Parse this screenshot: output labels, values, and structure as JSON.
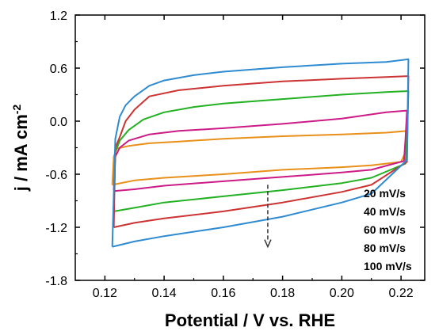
{
  "chart_data": {
    "type": "line",
    "xlabel": "Potential / V vs. RHE",
    "ylabel": "j / mA cm",
    "ylabel_superscript": "-2",
    "xlim": [
      0.11,
      0.228
    ],
    "ylim": [
      -1.8,
      1.2
    ],
    "x_ticks": [
      0.12,
      0.14,
      0.16,
      0.18,
      0.2,
      0.22
    ],
    "y_ticks": [
      -1.8,
      -1.2,
      -0.6,
      0.0,
      0.6,
      1.2
    ],
    "x_tick_labels": [
      "0.12",
      "0.14",
      "0.16",
      "0.18",
      "0.20",
      "0.22"
    ],
    "y_tick_labels": [
      "-1.8",
      "-1.2",
      "-0.6",
      "0.0",
      "0.6",
      "1.2"
    ],
    "legend_labels": [
      "20 mV/s",
      "40 mV/s",
      "60 mV/s",
      "80 mV/s",
      "100 mV/s"
    ],
    "legend_position": "bottom-right",
    "arrow": {
      "x": 0.175,
      "y_start": -0.72,
      "y_end": -1.42
    },
    "series": [
      {
        "name": "20 mV/s",
        "color": "#e8901a",
        "upper": [
          [
            0.1225,
            -0.72
          ],
          [
            0.123,
            -0.4
          ],
          [
            0.124,
            -0.31
          ],
          [
            0.128,
            -0.28
          ],
          [
            0.135,
            -0.25
          ],
          [
            0.145,
            -0.23
          ],
          [
            0.16,
            -0.2
          ],
          [
            0.18,
            -0.17
          ],
          [
            0.2,
            -0.15
          ],
          [
            0.215,
            -0.13
          ],
          [
            0.222,
            -0.11
          ]
        ],
        "lower": [
          [
            0.222,
            -0.11
          ],
          [
            0.2215,
            -0.35
          ],
          [
            0.22,
            -0.46
          ],
          [
            0.21,
            -0.5
          ],
          [
            0.2,
            -0.52
          ],
          [
            0.18,
            -0.55
          ],
          [
            0.16,
            -0.6
          ],
          [
            0.14,
            -0.64
          ],
          [
            0.13,
            -0.67
          ],
          [
            0.1225,
            -0.72
          ]
        ]
      },
      {
        "name": "40 mV/s",
        "color": "#cc1a86",
        "upper": [
          [
            0.123,
            -0.78
          ],
          [
            0.1235,
            -0.4
          ],
          [
            0.125,
            -0.3
          ],
          [
            0.128,
            -0.22
          ],
          [
            0.135,
            -0.15
          ],
          [
            0.145,
            -0.11
          ],
          [
            0.16,
            -0.08
          ],
          [
            0.18,
            -0.03
          ],
          [
            0.2,
            0.03
          ],
          [
            0.215,
            0.1
          ],
          [
            0.222,
            0.12
          ]
        ],
        "lower": [
          [
            0.222,
            0.12
          ],
          [
            0.2215,
            -0.2
          ],
          [
            0.221,
            -0.45
          ],
          [
            0.21,
            -0.55
          ],
          [
            0.2,
            -0.58
          ],
          [
            0.18,
            -0.63
          ],
          [
            0.16,
            -0.68
          ],
          [
            0.14,
            -0.73
          ],
          [
            0.13,
            -0.77
          ],
          [
            0.123,
            -0.79
          ]
        ]
      },
      {
        "name": "60 mV/s",
        "color": "#22b122",
        "upper": [
          [
            0.123,
            -1.02
          ],
          [
            0.1235,
            -0.35
          ],
          [
            0.125,
            -0.22
          ],
          [
            0.128,
            -0.1
          ],
          [
            0.133,
            0.02
          ],
          [
            0.14,
            0.1
          ],
          [
            0.15,
            0.16
          ],
          [
            0.16,
            0.2
          ],
          [
            0.18,
            0.25
          ],
          [
            0.2,
            0.3
          ],
          [
            0.215,
            0.33
          ],
          [
            0.2225,
            0.34
          ]
        ],
        "lower": [
          [
            0.2225,
            0.34
          ],
          [
            0.222,
            -0.2
          ],
          [
            0.2215,
            -0.48
          ],
          [
            0.21,
            -0.64
          ],
          [
            0.2,
            -0.7
          ],
          [
            0.18,
            -0.78
          ],
          [
            0.16,
            -0.85
          ],
          [
            0.14,
            -0.92
          ],
          [
            0.13,
            -0.98
          ],
          [
            0.123,
            -1.02
          ]
        ]
      },
      {
        "name": "80 mV/s",
        "color": "#cc3333",
        "upper": [
          [
            0.123,
            -1.2
          ],
          [
            0.1235,
            -0.3
          ],
          [
            0.125,
            -0.18
          ],
          [
            0.127,
            0.0
          ],
          [
            0.13,
            0.13
          ],
          [
            0.135,
            0.28
          ],
          [
            0.145,
            0.35
          ],
          [
            0.16,
            0.4
          ],
          [
            0.18,
            0.45
          ],
          [
            0.2,
            0.48
          ],
          [
            0.215,
            0.5
          ],
          [
            0.2225,
            0.51
          ]
        ],
        "lower": [
          [
            0.2225,
            0.51
          ],
          [
            0.2222,
            -0.1
          ],
          [
            0.222,
            -0.46
          ],
          [
            0.21,
            -0.72
          ],
          [
            0.2,
            -0.8
          ],
          [
            0.18,
            -0.92
          ],
          [
            0.16,
            -1.02
          ],
          [
            0.14,
            -1.1
          ],
          [
            0.13,
            -1.15
          ],
          [
            0.123,
            -1.2
          ]
        ]
      },
      {
        "name": "100 mV/s",
        "color": "#2f8bd1",
        "upper": [
          [
            0.1225,
            -1.42
          ],
          [
            0.1235,
            -0.2
          ],
          [
            0.125,
            0.05
          ],
          [
            0.127,
            0.18
          ],
          [
            0.13,
            0.28
          ],
          [
            0.135,
            0.4
          ],
          [
            0.14,
            0.46
          ],
          [
            0.15,
            0.52
          ],
          [
            0.16,
            0.56
          ],
          [
            0.18,
            0.61
          ],
          [
            0.2,
            0.65
          ],
          [
            0.215,
            0.67
          ],
          [
            0.2225,
            0.7
          ]
        ],
        "lower": [
          [
            0.2225,
            0.7
          ],
          [
            0.2222,
            0.0
          ],
          [
            0.222,
            -0.44
          ],
          [
            0.21,
            -0.82
          ],
          [
            0.2,
            -0.92
          ],
          [
            0.18,
            -1.08
          ],
          [
            0.16,
            -1.2
          ],
          [
            0.14,
            -1.3
          ],
          [
            0.13,
            -1.36
          ],
          [
            0.1225,
            -1.42
          ]
        ]
      }
    ]
  }
}
